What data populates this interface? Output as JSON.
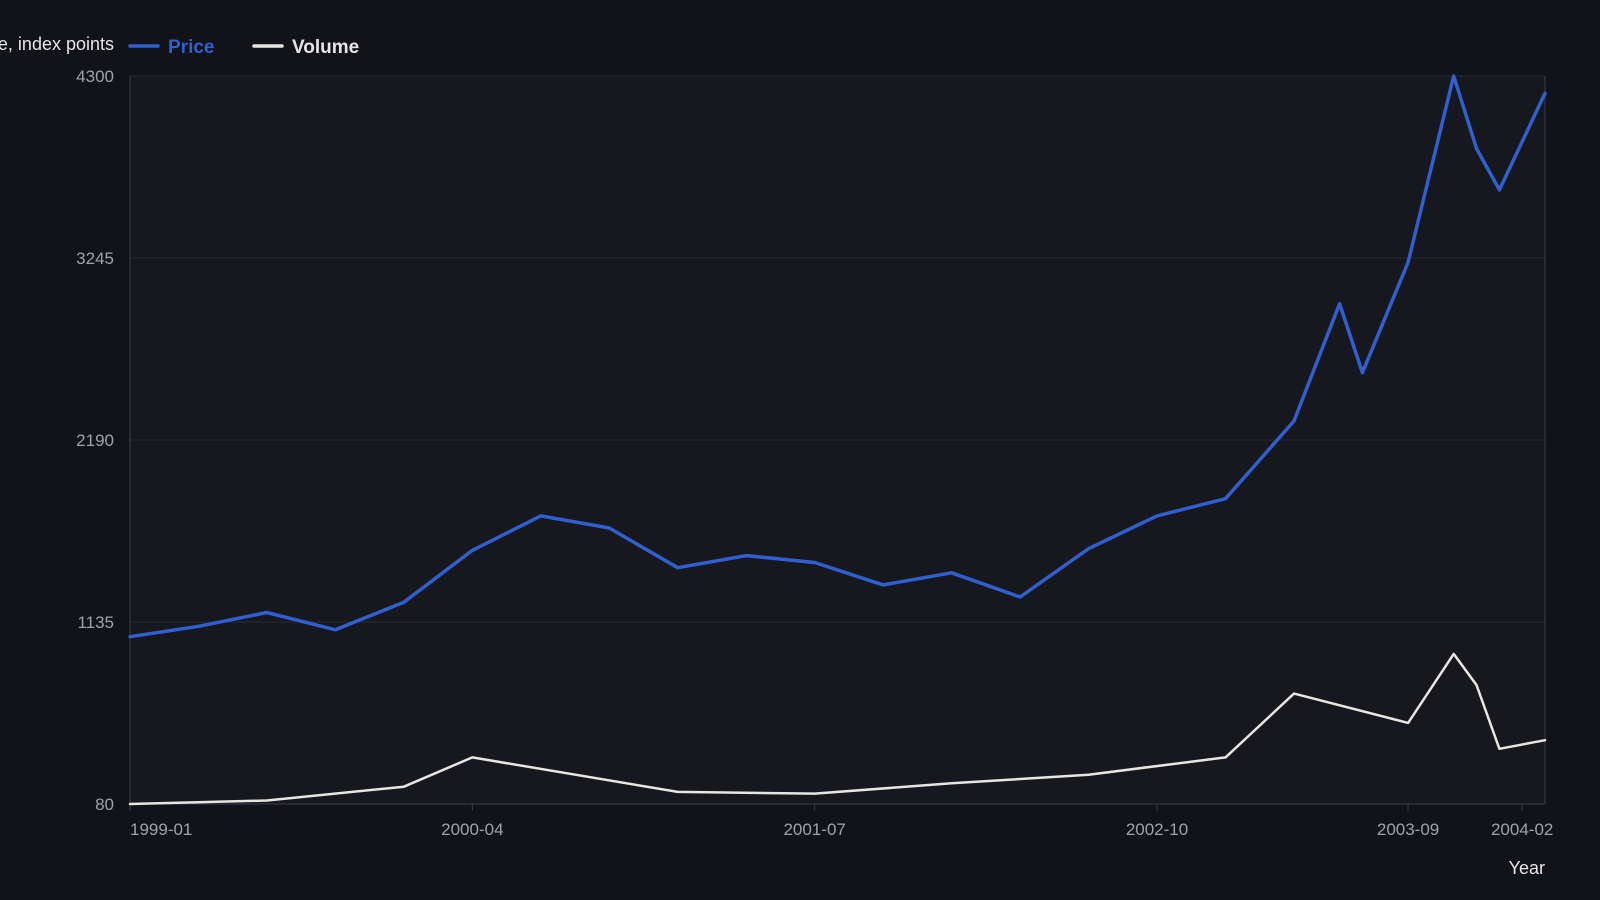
{
  "colors": {
    "background": "#111318",
    "plot_background": "#16181d",
    "grid": "#262a31",
    "axis": "#3a3e46",
    "tick_text": "#9ea3ab",
    "label_text": "#e6e6e6",
    "price": "#2f5fd0",
    "volume": "#e8e6e1"
  },
  "chart_data": {
    "type": "line",
    "title": "",
    "ylabel": "…e, index points",
    "xlabel": "Year",
    "ylim": [
      80,
      4300
    ],
    "yticks": [
      80,
      1135,
      2190,
      3245,
      4300
    ],
    "xlim": [
      "1999-01",
      "2004-03"
    ],
    "xticks": [
      "1999-01",
      "2000-04",
      "2001-07",
      "2002-10",
      "2003-09",
      "2004-02"
    ],
    "grid": true,
    "legend": "top-left",
    "series": [
      {
        "name": "Price",
        "color_key": "price",
        "points": [
          [
            "1999-01",
            1050
          ],
          [
            "1999-04",
            1110
          ],
          [
            "1999-07",
            1190
          ],
          [
            "1999-10",
            1090
          ],
          [
            "2000-01",
            1250
          ],
          [
            "2000-04",
            1550
          ],
          [
            "2000-07",
            1750
          ],
          [
            "2000-10",
            1680
          ],
          [
            "2001-01",
            1450
          ],
          [
            "2001-04",
            1520
          ],
          [
            "2001-07",
            1480
          ],
          [
            "2001-10",
            1350
          ],
          [
            "2002-01",
            1420
          ],
          [
            "2002-04",
            1280
          ],
          [
            "2002-07",
            1560
          ],
          [
            "2002-10",
            1750
          ],
          [
            "2003-01",
            1850
          ],
          [
            "2003-04",
            2300
          ],
          [
            "2003-06",
            2980
          ],
          [
            "2003-07",
            2580
          ],
          [
            "2003-09",
            3220
          ],
          [
            "2003-11",
            4300
          ],
          [
            "2003-12",
            3880
          ],
          [
            "2004-01",
            3640
          ],
          [
            "2004-03",
            4200
          ]
        ]
      },
      {
        "name": "Volume",
        "color_key": "volume",
        "points": [
          [
            "1999-01",
            80
          ],
          [
            "1999-07",
            100
          ],
          [
            "2000-01",
            180
          ],
          [
            "2000-04",
            350
          ],
          [
            "2001-01",
            150
          ],
          [
            "2001-07",
            140
          ],
          [
            "2002-01",
            200
          ],
          [
            "2002-07",
            250
          ],
          [
            "2003-01",
            350
          ],
          [
            "2003-04",
            720
          ],
          [
            "2003-09",
            550
          ],
          [
            "2003-11",
            950
          ],
          [
            "2003-12",
            770
          ],
          [
            "2004-01",
            400
          ],
          [
            "2004-03",
            450
          ]
        ]
      }
    ]
  }
}
